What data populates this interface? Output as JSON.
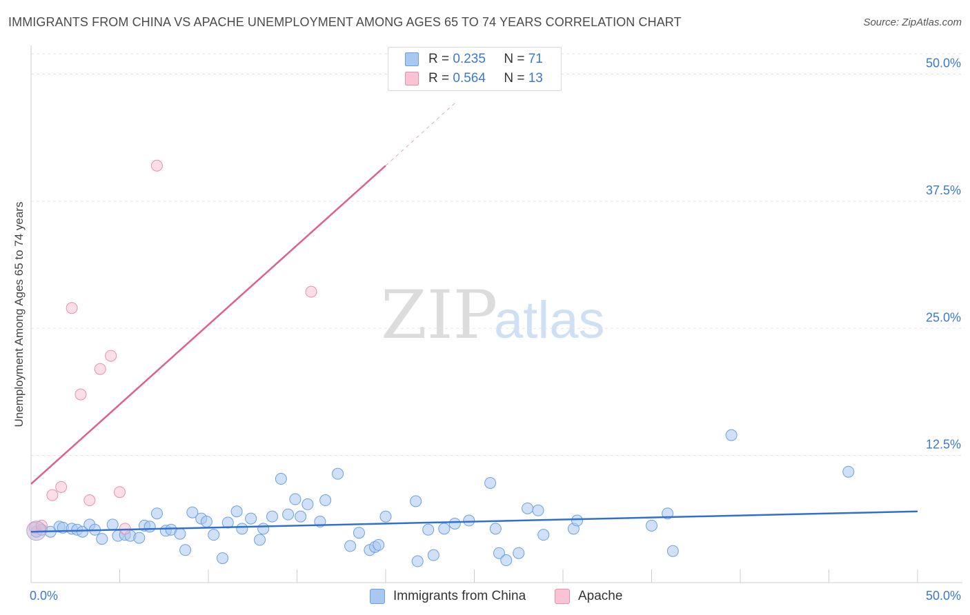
{
  "title": "IMMIGRANTS FROM CHINA VS APACHE UNEMPLOYMENT AMONG AGES 65 TO 74 YEARS CORRELATION CHART",
  "source": "Source: ZipAtlas.com",
  "watermark": {
    "zip": "ZIP",
    "atlas": "atlas"
  },
  "legend": {
    "r_label": "R =",
    "n_label": "N =",
    "series": [
      {
        "name": "Immigrants from China",
        "r": "0.235",
        "n": "71",
        "color": "#a9c8f0",
        "stroke": "#6a9fe0"
      },
      {
        "name": "Apache",
        "r": "0.564",
        "n": "13",
        "color": "#f8c3d3",
        "stroke": "#e890ab"
      }
    ]
  },
  "chart_data": {
    "type": "scatter",
    "title": "IMMIGRANTS FROM CHINA VS APACHE UNEMPLOYMENT AMONG AGES 65 TO 74 YEARS CORRELATION CHART",
    "xlabel": "",
    "ylabel": "Unemployment Among Ages 65 to 74 years",
    "xlim": [
      0,
      50
    ],
    "ylim": [
      0,
      52
    ],
    "x_tick_labels": [
      "0.0%",
      "50.0%"
    ],
    "y_ticks": [
      12.5,
      25.0,
      37.5,
      50.0
    ],
    "y_tick_labels": [
      "12.5%",
      "25.0%",
      "37.5%",
      "50.0%"
    ],
    "grid": true,
    "series": [
      {
        "name": "Immigrants from China",
        "color": "#a9c8f0",
        "stroke": "#6a9fe0",
        "points": [
          [
            0.3,
            5.0
          ],
          [
            0.6,
            5.2
          ],
          [
            1.1,
            5.0
          ],
          [
            1.6,
            5.5
          ],
          [
            1.8,
            5.4
          ],
          [
            2.3,
            5.3
          ],
          [
            2.6,
            5.2
          ],
          [
            2.9,
            5.0
          ],
          [
            3.3,
            5.7
          ],
          [
            3.6,
            5.2
          ],
          [
            4.0,
            4.3
          ],
          [
            4.6,
            5.7
          ],
          [
            4.9,
            4.6
          ],
          [
            5.3,
            4.7
          ],
          [
            5.6,
            4.6
          ],
          [
            6.1,
            4.4
          ],
          [
            6.4,
            5.6
          ],
          [
            6.7,
            5.5
          ],
          [
            7.1,
            6.8
          ],
          [
            7.6,
            5.1
          ],
          [
            7.9,
            5.2
          ],
          [
            8.4,
            4.8
          ],
          [
            8.7,
            3.2
          ],
          [
            9.1,
            6.9
          ],
          [
            9.6,
            6.3
          ],
          [
            9.9,
            6.0
          ],
          [
            10.3,
            4.7
          ],
          [
            10.8,
            2.4
          ],
          [
            11.1,
            5.9
          ],
          [
            11.6,
            7.0
          ],
          [
            11.9,
            5.3
          ],
          [
            12.4,
            6.3
          ],
          [
            12.9,
            4.2
          ],
          [
            13.1,
            5.3
          ],
          [
            13.6,
            6.5
          ],
          [
            14.1,
            10.2
          ],
          [
            14.5,
            6.7
          ],
          [
            14.9,
            8.2
          ],
          [
            15.2,
            6.5
          ],
          [
            15.6,
            7.7
          ],
          [
            16.3,
            6.0
          ],
          [
            16.6,
            8.1
          ],
          [
            17.3,
            10.7
          ],
          [
            18.0,
            3.6
          ],
          [
            18.5,
            4.9
          ],
          [
            19.1,
            3.2
          ],
          [
            19.4,
            3.5
          ],
          [
            19.6,
            3.7
          ],
          [
            20.0,
            6.5
          ],
          [
            21.7,
            8.0
          ],
          [
            21.8,
            2.1
          ],
          [
            22.4,
            5.2
          ],
          [
            22.7,
            2.7
          ],
          [
            23.3,
            5.3
          ],
          [
            23.9,
            5.8
          ],
          [
            24.7,
            6.1
          ],
          [
            25.9,
            9.8
          ],
          [
            26.2,
            5.3
          ],
          [
            26.4,
            2.9
          ],
          [
            26.8,
            2.2
          ],
          [
            27.5,
            2.9
          ],
          [
            28.0,
            7.3
          ],
          [
            28.6,
            7.1
          ],
          [
            28.9,
            4.7
          ],
          [
            30.6,
            5.3
          ],
          [
            30.8,
            6.1
          ],
          [
            35.0,
            5.6
          ],
          [
            35.9,
            6.8
          ],
          [
            36.2,
            3.1
          ],
          [
            39.5,
            14.5
          ],
          [
            46.1,
            10.9
          ]
        ]
      },
      {
        "name": "Apache",
        "color": "#f8c3d3",
        "stroke": "#e890ab",
        "points": [
          [
            0.2,
            5.4
          ],
          [
            0.6,
            5.6
          ],
          [
            1.2,
            8.6
          ],
          [
            1.7,
            9.4
          ],
          [
            2.3,
            27.0
          ],
          [
            2.8,
            18.5
          ],
          [
            3.3,
            8.1
          ],
          [
            3.9,
            21.0
          ],
          [
            4.5,
            22.3
          ],
          [
            5.0,
            8.9
          ],
          [
            5.3,
            5.3
          ],
          [
            7.1,
            41.0
          ],
          [
            15.8,
            28.6
          ]
        ]
      }
    ],
    "trend_lines": [
      {
        "series": "Immigrants from China",
        "x": [
          0,
          50
        ],
        "y": [
          5.0,
          7.0
        ]
      },
      {
        "series": "Apache",
        "x": [
          0,
          20
        ],
        "y": [
          9.7,
          41.0
        ],
        "extends_dashed_to": [
          24,
          47.3
        ]
      }
    ]
  }
}
